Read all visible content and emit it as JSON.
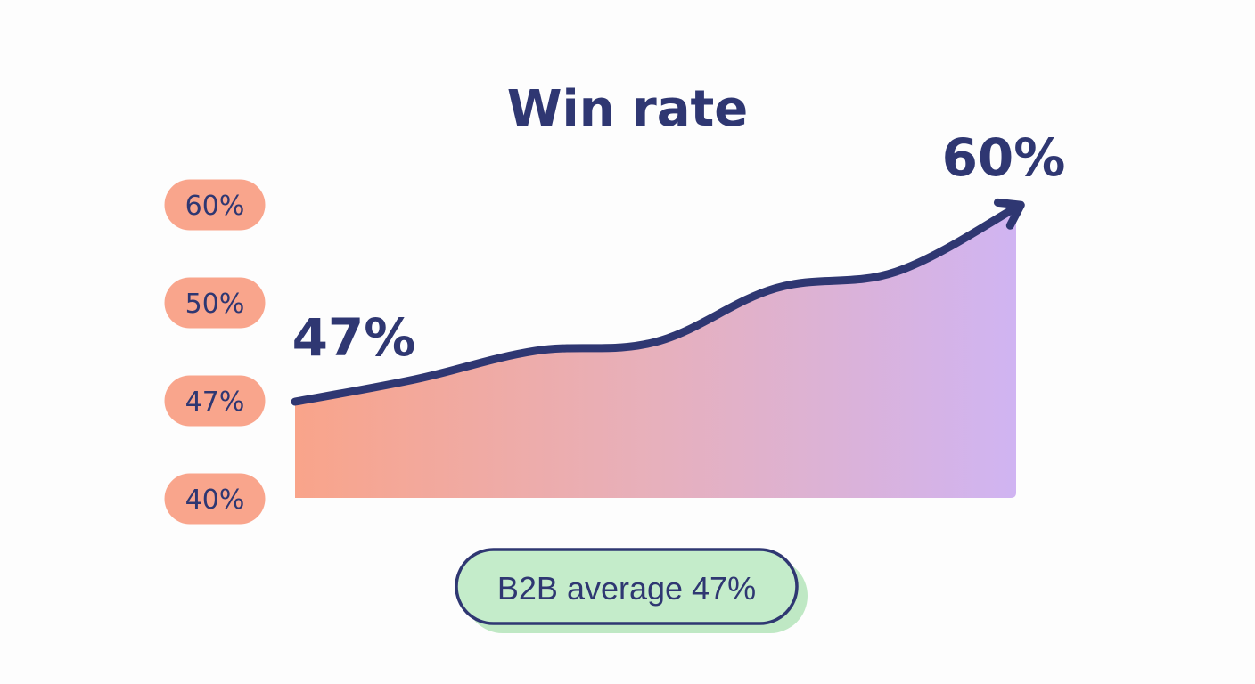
{
  "chart_data": {
    "type": "area",
    "title": "Win rate",
    "y_tick_labels": [
      "60%",
      "50%",
      "47%",
      "40%"
    ],
    "y_ticks": [
      60,
      50,
      47,
      40
    ],
    "ylim": [
      40,
      60
    ],
    "x": [
      0,
      1,
      2,
      3,
      4,
      5,
      6
    ],
    "series": [
      {
        "values": [
          47,
          48.5,
          50.4,
          51,
          54.6,
          55.7,
          60
        ]
      }
    ],
    "start_label": "47%",
    "end_label": "60%",
    "fill_colors": [
      "#f9a48a",
      "#d0b4f2"
    ],
    "line_color": "#2f3772",
    "tick_pill_color": "#f9a58c",
    "legend": false,
    "grid": false
  },
  "badge": {
    "label": "B2B average 47%",
    "color": "#c4ecca"
  }
}
